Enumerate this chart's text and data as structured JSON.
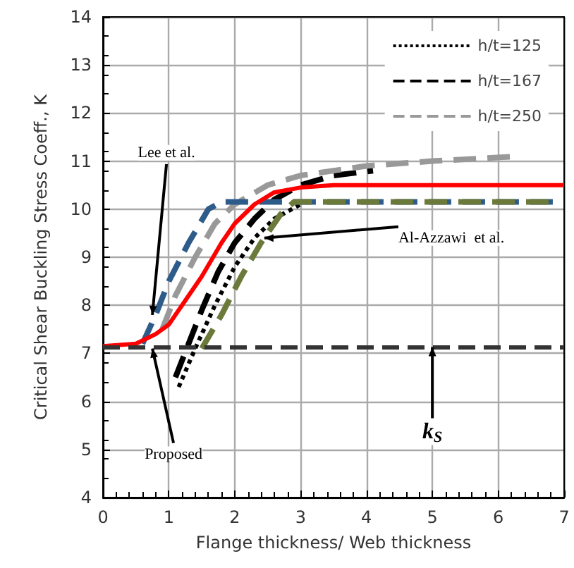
{
  "chart_data": {
    "type": "line",
    "xlabel": "Flange thickness/ Web thickness",
    "ylabel": "Critical Shear Buckling Stress Coeff., K",
    "xlim": [
      0,
      7
    ],
    "xticks": [
      0,
      1,
      2,
      3,
      4,
      5,
      6,
      7
    ],
    "ylim": [
      4,
      14
    ],
    "yticks": [
      4,
      5,
      6,
      7,
      8,
      9,
      10,
      11,
      12,
      13,
      14
    ],
    "grid": true,
    "legend": "top right",
    "marker": "none",
    "series": [
      {
        "name": "h/t=125",
        "color": "#000000",
        "line_style": "dotted",
        "x": [
          1.15,
          1.4,
          1.7,
          2,
          2.3,
          2.6,
          3
        ],
        "values": [
          6.3,
          7.1,
          8,
          8.8,
          9.4,
          9.8,
          10.1
        ]
      },
      {
        "name": "h/t=167",
        "color": "#000000",
        "line_style": "dashed",
        "x": [
          1.1,
          1.3,
          1.5,
          1.75,
          2,
          2.3,
          2.6,
          3,
          3.5,
          4.1
        ],
        "values": [
          6.5,
          7.2,
          7.9,
          8.7,
          9.3,
          9.8,
          10.2,
          10.5,
          10.7,
          10.8
        ]
      },
      {
        "name": "h/t=250",
        "color": "#999999",
        "line_style": "dashed",
        "x": [
          0.9,
          1.1,
          1.4,
          1.7,
          2,
          2.5,
          3,
          4,
          5,
          6.3
        ],
        "values": [
          7.5,
          8.2,
          9,
          9.7,
          10.1,
          10.5,
          10.7,
          10.9,
          11,
          11.1
        ]
      },
      {
        "color": "#2e5c8a",
        "line_style": "dashed",
        "x": [
          0.6,
          0.8,
          1,
          1.3,
          1.6,
          1.8,
          7
        ],
        "values": [
          7.2,
          7.8,
          8.5,
          9.3,
          10,
          10.15,
          10.15
        ]
      },
      {
        "color": "#6b7a3a",
        "line_style": "dashed",
        "x": [
          1.5,
          1.8,
          2.1,
          2.4,
          2.7,
          2.9,
          6.9
        ],
        "values": [
          7.1,
          7.8,
          8.6,
          9.3,
          9.9,
          10.15,
          10.15
        ]
      },
      {
        "color": "#ff0000",
        "line_style": "solid",
        "x": [
          0,
          0.5,
          0.8,
          1,
          1.2,
          1.5,
          1.8,
          2,
          2.3,
          2.6,
          3,
          3.5,
          7
        ],
        "values": [
          7.15,
          7.2,
          7.4,
          7.6,
          8,
          8.6,
          9.3,
          9.7,
          10.1,
          10.35,
          10.45,
          10.5,
          10.5
        ]
      }
    ],
    "ref_lines": [
      {
        "axis": "y",
        "value": 7.13,
        "color": "#333333",
        "line_style": "dashed"
      }
    ],
    "annotations": [
      {
        "text": "Lee et al.",
        "x": 0.75,
        "y": 7.8
      },
      {
        "text": "Al-Azzawi  et al.",
        "x": 2.45,
        "y": 9.4
      },
      {
        "text": "Proposed",
        "x": 0.75,
        "y": 7.1
      },
      {
        "text": "k$_{S}$",
        "x": 5,
        "y": 7.13
      }
    ]
  }
}
